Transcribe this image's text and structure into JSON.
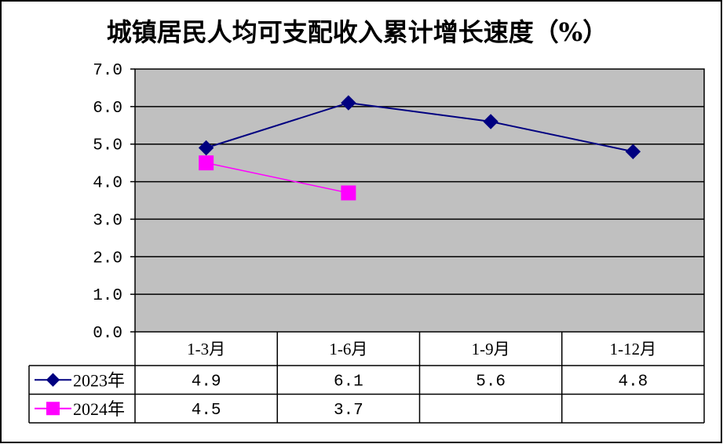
{
  "chart_data": {
    "type": "line",
    "title": "城镇居民人均可支配收入累计增长速度（%）",
    "categories": [
      "1-3月",
      "1-6月",
      "1-9月",
      "1-12月"
    ],
    "series": [
      {
        "name": "2023年",
        "values": [
          4.9,
          6.1,
          5.6,
          4.8
        ],
        "color": "#000080",
        "marker": "diamond"
      },
      {
        "name": "2024年",
        "values": [
          4.5,
          3.7,
          null,
          null
        ],
        "color": "#FF00FF",
        "marker": "square"
      }
    ],
    "ylim": [
      0,
      7
    ],
    "ytick_labels": [
      "0.0",
      "1.0",
      "2.0",
      "3.0",
      "4.0",
      "5.0",
      "6.0",
      "7.0"
    ],
    "grid": true,
    "legend": "data-table",
    "data_table": true,
    "plot_background": "#C0C0C0"
  }
}
